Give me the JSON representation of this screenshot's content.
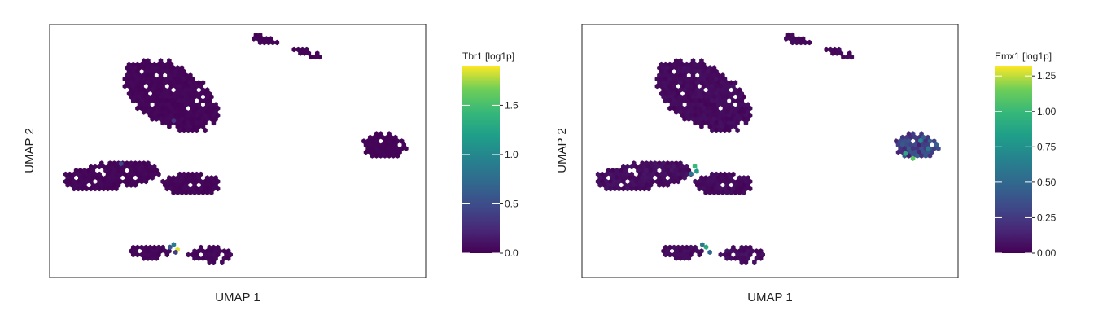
{
  "chart_data": [
    {
      "type": "scatter",
      "subtype": "hexbin-embedding",
      "title": "",
      "xlabel": "UMAP 1",
      "ylabel": "UMAP 2",
      "xlim": [
        0,
        100
      ],
      "ylim": [
        0,
        100
      ],
      "show_ticks": false,
      "grid": false,
      "colormap": "viridis",
      "color_range": [
        0,
        1.9
      ],
      "colorbar": {
        "title": "Tbr1 [log1p]",
        "ticks": [
          0.0,
          0.5,
          1.0,
          1.5
        ],
        "tick_labels": [
          "0.0",
          "0.5",
          "1.0",
          "1.5"
        ]
      },
      "clusters": [
        {
          "name": "upper-left",
          "cx": 32,
          "cy": 72,
          "rx": 14,
          "ry": 12,
          "tilt": -0.5,
          "value": 0.03
        },
        {
          "name": "top-streak-a",
          "cx": 57,
          "cy": 94,
          "rx": 3.5,
          "ry": 1.6,
          "tilt": -0.2,
          "value": 0.02
        },
        {
          "name": "top-streak-b",
          "cx": 68,
          "cy": 89,
          "rx": 4.5,
          "ry": 1.4,
          "tilt": -0.3,
          "value": 0.02
        },
        {
          "name": "right-island",
          "cx": 89,
          "cy": 52,
          "rx": 6,
          "ry": 5,
          "tilt": 0,
          "value": 0.02
        },
        {
          "name": "middle-left",
          "cx": 16,
          "cy": 40,
          "rx": 13,
          "ry": 5.5,
          "tilt": 0.1,
          "value": 0.03
        },
        {
          "name": "middle-right",
          "cx": 38,
          "cy": 37,
          "rx": 8,
          "ry": 4.5,
          "tilt": 0,
          "value": 0.03
        },
        {
          "name": "bottom-left",
          "cx": 27,
          "cy": 10,
          "rx": 6,
          "ry": 3,
          "tilt": 0,
          "value": 0.03
        },
        {
          "name": "bottom-right",
          "cx": 43,
          "cy": 9,
          "rx": 6,
          "ry": 3.2,
          "tilt": 0,
          "value": 0.04
        }
      ],
      "hotspots": [
        {
          "x": 33,
          "y": 13,
          "value": 0.9
        },
        {
          "x": 34,
          "y": 11,
          "value": 1.85
        },
        {
          "x": 32,
          "y": 12,
          "value": 0.6
        },
        {
          "x": 33.5,
          "y": 10,
          "value": 0.4
        },
        {
          "x": 19,
          "y": 45,
          "value": 0.45
        },
        {
          "x": 33,
          "y": 62,
          "value": 0.3
        }
      ]
    },
    {
      "type": "scatter",
      "subtype": "hexbin-embedding",
      "title": "",
      "xlabel": "UMAP 1",
      "ylabel": "UMAP 2",
      "xlim": [
        0,
        100
      ],
      "ylim": [
        0,
        100
      ],
      "show_ticks": false,
      "grid": false,
      "colormap": "viridis",
      "color_range": [
        0,
        1.32
      ],
      "colorbar": {
        "title": "Emx1 [log1p]",
        "ticks": [
          0.0,
          0.25,
          0.5,
          0.75,
          1.0,
          1.25
        ],
        "tick_labels": [
          "0.00",
          "0.25",
          "0.50",
          "0.75",
          "1.00",
          "1.25"
        ]
      },
      "clusters": [
        {
          "name": "upper-left",
          "cx": 32,
          "cy": 72,
          "rx": 14,
          "ry": 12,
          "tilt": -0.5,
          "value": 0.04
        },
        {
          "name": "top-streak-a",
          "cx": 57,
          "cy": 94,
          "rx": 3.5,
          "ry": 1.6,
          "tilt": -0.2,
          "value": 0.03
        },
        {
          "name": "top-streak-b",
          "cx": 68,
          "cy": 89,
          "rx": 4.5,
          "ry": 1.4,
          "tilt": -0.3,
          "value": 0.03
        },
        {
          "name": "right-island",
          "cx": 89,
          "cy": 52,
          "rx": 6,
          "ry": 5,
          "tilt": 0,
          "value": 0.28
        },
        {
          "name": "middle-left",
          "cx": 16,
          "cy": 40,
          "rx": 13,
          "ry": 5.5,
          "tilt": 0.1,
          "value": 0.05
        },
        {
          "name": "middle-right",
          "cx": 38,
          "cy": 37,
          "rx": 8,
          "ry": 4.5,
          "tilt": 0,
          "value": 0.04
        },
        {
          "name": "bottom-left",
          "cx": 27,
          "cy": 10,
          "rx": 6,
          "ry": 3,
          "tilt": 0,
          "value": 0.04
        },
        {
          "name": "bottom-right",
          "cx": 43,
          "cy": 9,
          "rx": 6,
          "ry": 3.2,
          "tilt": 0,
          "value": 0.05
        }
      ],
      "hotspots": [
        {
          "x": 30,
          "y": 44,
          "value": 1.0
        },
        {
          "x": 30.5,
          "y": 42,
          "value": 0.8
        },
        {
          "x": 29,
          "y": 41,
          "value": 0.55
        },
        {
          "x": 33,
          "y": 12,
          "value": 0.9
        },
        {
          "x": 32,
          "y": 13,
          "value": 0.6
        },
        {
          "x": 34,
          "y": 10,
          "value": 0.5
        },
        {
          "x": 86,
          "y": 49,
          "value": 0.9
        },
        {
          "x": 90,
          "y": 54,
          "value": 0.7
        },
        {
          "x": 88,
          "y": 47,
          "value": 1.1
        },
        {
          "x": 92,
          "y": 51,
          "value": 0.6
        }
      ]
    }
  ]
}
